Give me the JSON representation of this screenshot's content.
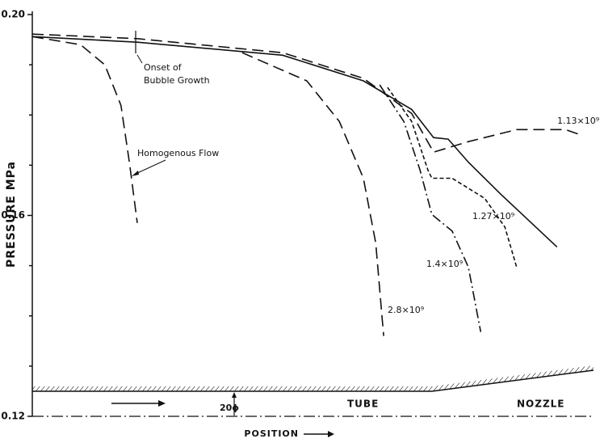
{
  "chart_data": {
    "type": "line",
    "ylabel": "PRESSURE  MPa",
    "xlabel": "POSITION",
    "xlim": [
      0,
      100
    ],
    "ylim": [
      0.12,
      0.2
    ],
    "yticks": [
      0.12,
      0.16,
      {
        "value": 0.2,
        "label": "0.20"
      }
    ],
    "yminor_ticks": [
      0.13,
      0.14,
      0.15,
      0.17,
      0.18,
      0.19
    ],
    "annotations": [
      "Onset of",
      "Bubble Growth",
      "Homogenous Flow",
      "TUBE",
      "NOZZLE",
      "20ϕ"
    ],
    "series": [
      {
        "style": "dashed",
        "x": [
          0,
          8.6,
          12.9,
          15.8,
          17.3,
          18.7
        ],
        "values": [
          0.1956,
          0.194,
          0.19,
          0.1819,
          0.1706,
          0.1585
        ]
      },
      {
        "style": "solid",
        "x": [
          0,
          18.7,
          44.6,
          59,
          67.6,
          71.5,
          74.1,
          77.7,
          83.5,
          93.5
        ],
        "values": [
          0.1956,
          0.1945,
          0.1919,
          0.1868,
          0.1811,
          0.1755,
          0.1752,
          0.1706,
          0.1642,
          0.1537
        ]
      },
      {
        "name": "1.13×10⁹",
        "style": "dashed",
        "x": [
          0,
          18.7,
          44.6,
          59,
          67.6,
          71.5,
          77.7,
          86.3,
          95,
          97.8
        ],
        "values": [
          0.1961,
          0.1952,
          0.1924,
          0.1873,
          0.1803,
          0.1726,
          0.1747,
          0.1771,
          0.1771,
          0.176
        ]
      },
      {
        "name": "1.27×10⁹",
        "style": "dotted",
        "x": [
          63.3,
          67.6,
          70.5,
          71.2,
          74.8,
          80.6,
          84.2,
          86.3
        ],
        "values": [
          0.1855,
          0.1787,
          0.169,
          0.1674,
          0.1674,
          0.1634,
          0.1577,
          0.1497
        ]
      },
      {
        "name": "1.4×10⁹",
        "style": "dashdot",
        "x": [
          61.9,
          66.2,
          69.1,
          71.2,
          74.8,
          77.7,
          79.9
        ],
        "values": [
          0.186,
          0.1787,
          0.169,
          0.1602,
          0.1569,
          0.1497,
          0.1368
        ]
      },
      {
        "name": "2.8×10⁹",
        "style": "dashed",
        "x": [
          37.4,
          48.9,
          54.7,
          59,
          61.2,
          62.6
        ],
        "values": [
          0.1924,
          0.1868,
          0.1787,
          0.1674,
          0.1545,
          0.136
        ]
      }
    ]
  }
}
